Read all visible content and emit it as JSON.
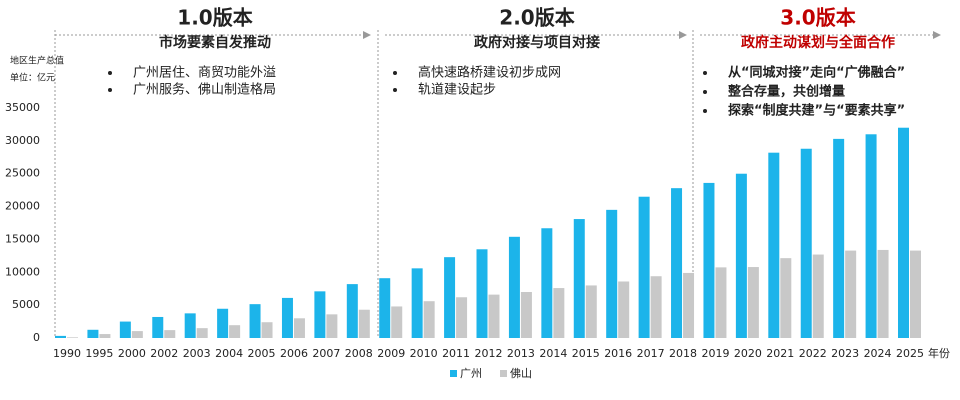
{
  "chart_data": {
    "type": "bar",
    "y_label": "地区生产总值",
    "y_unit": "单位：亿元",
    "x_label": "年份",
    "categories": [
      "1990",
      "1995",
      "2000",
      "2002",
      "2003",
      "2004",
      "2005",
      "2006",
      "2007",
      "2008",
      "2009",
      "2010",
      "2011",
      "2012",
      "2013",
      "2014",
      "2015",
      "2016",
      "2017",
      "2018",
      "2019",
      "2020",
      "2021",
      "2022",
      "2023",
      "2024",
      "2025"
    ],
    "series": [
      {
        "name": "广州",
        "color": "#1cb4ea",
        "values": [
          320,
          1250,
          2500,
          3200,
          3750,
          4450,
          5150,
          6100,
          7100,
          8200,
          9100,
          10600,
          12300,
          13500,
          15400,
          16700,
          18100,
          19500,
          21500,
          22800,
          23600,
          25000,
          28200,
          28800,
          30300,
          31000,
          32000
        ]
      },
      {
        "name": "佛山",
        "color": "#c8c8c8",
        "values": [
          100,
          600,
          1050,
          1200,
          1500,
          1950,
          2400,
          3000,
          3600,
          4300,
          4800,
          5600,
          6200,
          6600,
          7000,
          7600,
          8000,
          8600,
          9400,
          9900,
          10750,
          10800,
          12150,
          12700,
          13300,
          13400,
          13300
        ]
      }
    ],
    "ylim": [
      0,
      35000
    ],
    "yticks": [
      0,
      5000,
      10000,
      15000,
      20000,
      25000,
      30000,
      35000
    ],
    "phases": [
      {
        "title": "1.0版本",
        "subtitle": "市场要素自发推动",
        "color": "#222222",
        "bullets": [
          "广州居住、商贸功能外溢",
          "广州服务、佛山制造格局"
        ]
      },
      {
        "title": "2.0版本",
        "subtitle": "政府对接与项目对接",
        "color": "#222222",
        "bullets": [
          "高快速路桥建设初步成网",
          "轨道建设起步"
        ]
      },
      {
        "title": "3.0版本",
        "subtitle": "政府主动谋划与全面合作",
        "color": "#c00000",
        "bullets": [
          "从“同城对接”走向“广佛融合”",
          "整合存量，共创增量",
          "探索“制度共建”与“要素共享”"
        ]
      }
    ]
  }
}
